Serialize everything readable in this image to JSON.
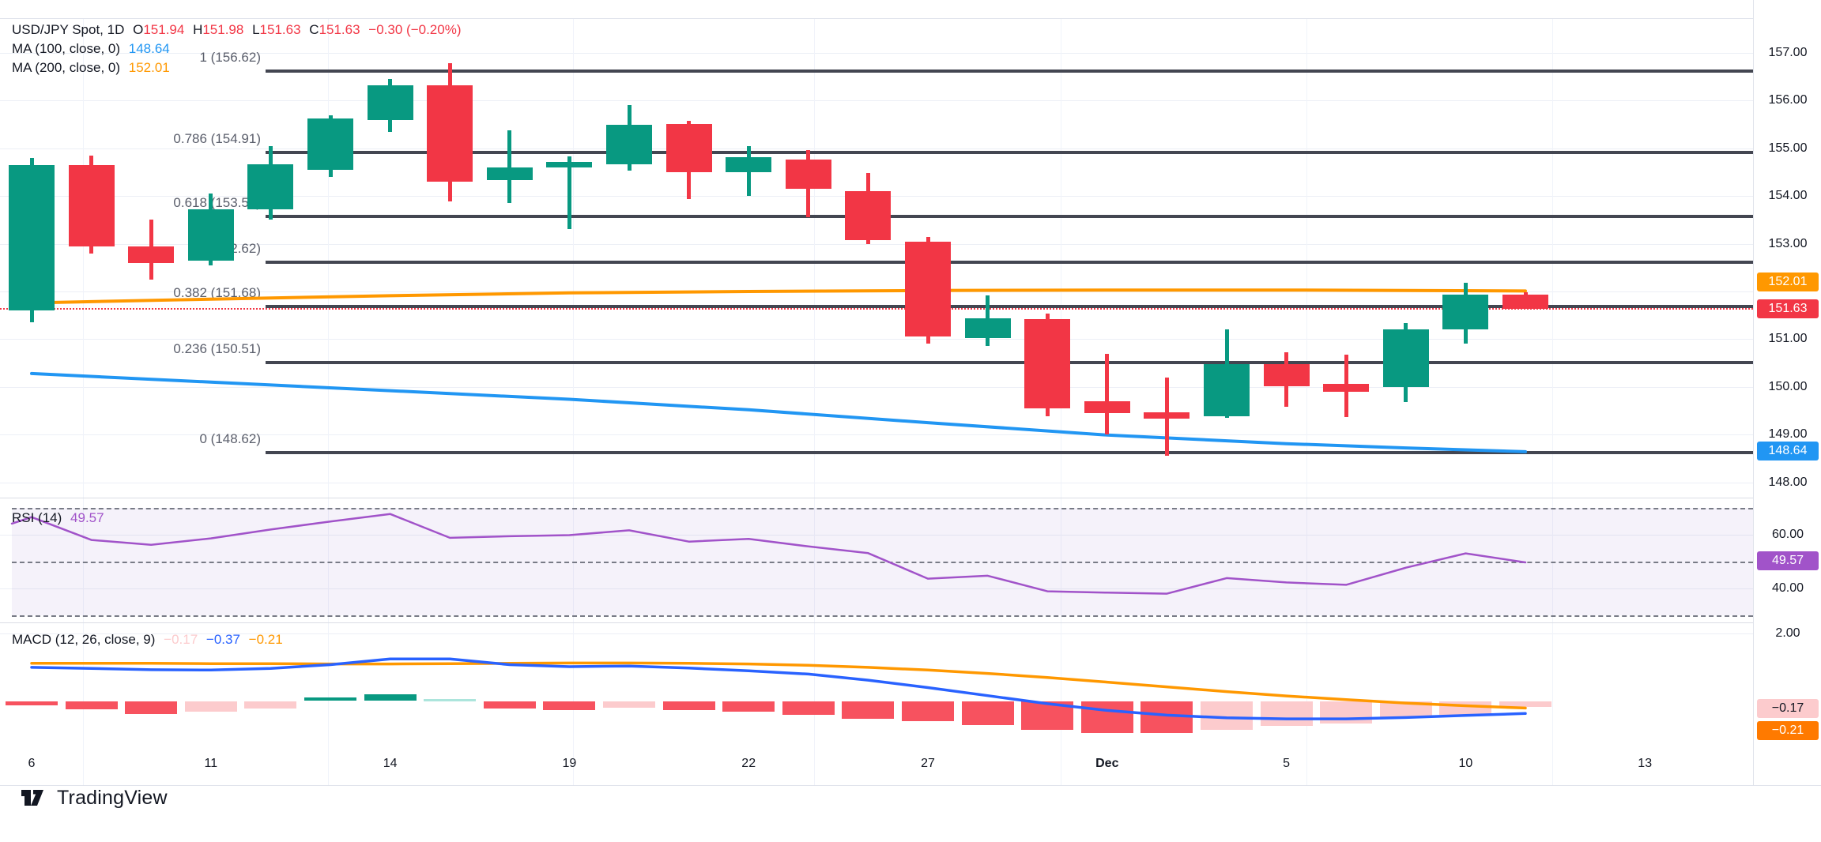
{
  "header": {
    "symbol": "USD/JPY Spot, 1D",
    "ohlc": {
      "o_label": "O",
      "o": "151.94",
      "h_label": "H",
      "h": "151.98",
      "l_label": "L",
      "l": "151.63",
      "c_label": "C",
      "c": "151.63",
      "change": "−0.30 (−0.20%)"
    },
    "ma100_label": "MA (100, close, 0)",
    "ma100_value": "148.64",
    "ma200_label": "MA (200, close, 0)",
    "ma200_value": "152.01"
  },
  "rsi_panel": {
    "label": "RSI (14)",
    "value": "49.57",
    "tick_upper": "60.00",
    "tick_lower": "40.00",
    "badge": "49.57"
  },
  "macd_panel": {
    "label": "MACD (12, 26, close, 9)",
    "hist_value": "−0.17",
    "macd_value": "−0.37",
    "signal_value": "−0.21",
    "tick": "2.00",
    "badge_hist": "−0.17",
    "badge_signal": "−0.21"
  },
  "price_axis": {
    "ticks": [
      "157.00",
      "156.00",
      "155.00",
      "154.00",
      "153.00",
      "151.00",
      "150.00",
      "149.00",
      "148.00"
    ],
    "badges": [
      {
        "text": "152.01",
        "bg": "#FF9800",
        "fg": "#FFFFFF"
      },
      {
        "text": "151.63",
        "bg": "#F23645",
        "fg": "#FFFFFF"
      },
      {
        "text": "148.64",
        "bg": "#2196F3",
        "fg": "#FFFFFF"
      },
      {
        "text": "49.57",
        "bg": "#A153C9",
        "fg": "#FFFFFF"
      },
      {
        "text": "−0.17",
        "bg": "#FCCBCD",
        "fg": "#131722"
      },
      {
        "text": "−0.21",
        "bg": "#FF7A00",
        "fg": "#FFFFFF"
      }
    ]
  },
  "time_axis": {
    "ticks": [
      {
        "label": "6",
        "bar": 0,
        "bold": false
      },
      {
        "label": "11",
        "bar": 3,
        "bold": false
      },
      {
        "label": "14",
        "bar": 6,
        "bold": false
      },
      {
        "label": "19",
        "bar": 9,
        "bold": false
      },
      {
        "label": "22",
        "bar": 12,
        "bold": false
      },
      {
        "label": "27",
        "bar": 15,
        "bold": false
      },
      {
        "label": "Dec",
        "bar": 18,
        "bold": true
      },
      {
        "label": "5",
        "bar": 21,
        "bold": false
      },
      {
        "label": "10",
        "bar": 24,
        "bold": false
      },
      {
        "label": "13",
        "bar": 27,
        "bold": false
      }
    ]
  },
  "fib": {
    "levels": [
      {
        "label": "1 (156.62)",
        "price": 156.62
      },
      {
        "label": "0.786 (154.91)",
        "price": 154.91
      },
      {
        "label": "0.618 (153.57)",
        "price": 153.57
      },
      {
        "label": "0.5 (152.62)",
        "price": 152.62
      },
      {
        "label": "0.382 (151.68)",
        "price": 151.68
      },
      {
        "label": "0.236 (150.51)",
        "price": 150.51
      },
      {
        "label": "0 (148.62)",
        "price": 148.62
      }
    ]
  },
  "footer": {
    "brand": "TradingView"
  },
  "colors": {
    "up": "#089981",
    "down": "#F23645",
    "ma100": "#2196F3",
    "ma200": "#FF9800",
    "rsi": "#A153C9",
    "macd_line": "#2962FF",
    "signal_line": "#FF9800",
    "hist_neg": "#F7525F",
    "hist_neg_light": "#FCCBCD",
    "hist_pos": "#089981",
    "hist_pos_light": "#ACE5DC",
    "fib_line": "#434651",
    "close_line": "#F23645"
  },
  "chart_data": {
    "type": "candlestick-with-indicators",
    "title": "USD/JPY Spot, 1D",
    "interval": "1D",
    "price_axis_range": [
      147.65,
      157.75
    ],
    "rsi_axis_visible": [
      30,
      70
    ],
    "macd_axis_tick": 2.0,
    "dates": [
      "Nov 6",
      "Nov 7",
      "Nov 8",
      "Nov 11",
      "Nov 12",
      "Nov 13",
      "Nov 14",
      "Nov 15",
      "Nov 18",
      "Nov 19",
      "Nov 20",
      "Nov 21",
      "Nov 22",
      "Nov 25",
      "Nov 26",
      "Nov 27",
      "Nov 28",
      "Nov 29",
      "Dec 2",
      "Dec 3",
      "Dec 4",
      "Dec 5",
      "Dec 6",
      "Dec 9",
      "Dec 10",
      "Dec 11"
    ],
    "candles_ohlc": [
      [
        151.6,
        154.8,
        151.35,
        154.65
      ],
      [
        154.65,
        154.85,
        152.8,
        152.95
      ],
      [
        152.95,
        153.5,
        152.25,
        152.6
      ],
      [
        152.65,
        154.05,
        152.55,
        153.72
      ],
      [
        153.72,
        155.05,
        153.5,
        154.67
      ],
      [
        154.55,
        155.7,
        154.4,
        155.62
      ],
      [
        155.59,
        156.45,
        155.35,
        156.32
      ],
      [
        156.32,
        156.78,
        153.88,
        154.3
      ],
      [
        154.33,
        155.37,
        153.85,
        154.6
      ],
      [
        154.6,
        154.83,
        153.3,
        154.71
      ],
      [
        154.66,
        155.9,
        154.54,
        155.49
      ],
      [
        155.51,
        155.57,
        153.93,
        154.5
      ],
      [
        154.5,
        155.04,
        154.0,
        154.82
      ],
      [
        154.77,
        154.96,
        153.56,
        154.16
      ],
      [
        154.1,
        154.49,
        152.99,
        153.08
      ],
      [
        153.05,
        153.15,
        150.9,
        151.06
      ],
      [
        151.02,
        151.92,
        150.85,
        151.43
      ],
      [
        151.42,
        151.53,
        149.38,
        149.55
      ],
      [
        149.7,
        150.69,
        149.0,
        149.45
      ],
      [
        149.46,
        150.19,
        148.55,
        149.33
      ],
      [
        149.38,
        151.2,
        149.35,
        150.47
      ],
      [
        150.47,
        150.72,
        149.58,
        150.02
      ],
      [
        150.07,
        150.68,
        149.36,
        149.9
      ],
      [
        149.99,
        151.34,
        149.69,
        151.21
      ],
      [
        151.2,
        152.18,
        150.9,
        151.93
      ],
      [
        151.94,
        151.98,
        151.63,
        151.63
      ]
    ],
    "ma100_points": [
      [
        0,
        150.28
      ],
      [
        3,
        150.1
      ],
      [
        6,
        149.92
      ],
      [
        9,
        149.74
      ],
      [
        12,
        149.52
      ],
      [
        15,
        149.25
      ],
      [
        18,
        148.99
      ],
      [
        21,
        148.81
      ],
      [
        23,
        148.72
      ],
      [
        25,
        148.64
      ]
    ],
    "ma200_points": [
      [
        0,
        151.76
      ],
      [
        3,
        151.84
      ],
      [
        6,
        151.91
      ],
      [
        9,
        151.97
      ],
      [
        12,
        152.0
      ],
      [
        15,
        152.02
      ],
      [
        18,
        152.03
      ],
      [
        21,
        152.03
      ],
      [
        23,
        152.02
      ],
      [
        25,
        152.01
      ]
    ],
    "fib_prices": [
      156.62,
      154.91,
      153.57,
      152.62,
      151.68,
      150.51,
      148.62
    ],
    "last_close": 151.63,
    "rsi": [
      66.4,
      57.9,
      56.1,
      58.5,
      61.8,
      64.8,
      67.6,
      58.7,
      59.3,
      59.7,
      61.5,
      57.3,
      58.3,
      55.5,
      53.0,
      43.5,
      44.6,
      38.8,
      38.3,
      37.9,
      43.7,
      42.1,
      41.2,
      47.6,
      52.9,
      49.57
    ],
    "rsi_levels": {
      "overbought": 70,
      "middle": 50,
      "oversold": 30
    },
    "macd_line": [
      1.0,
      0.97,
      0.93,
      0.92,
      0.97,
      1.08,
      1.25,
      1.25,
      1.08,
      1.02,
      1.04,
      0.98,
      0.9,
      0.8,
      0.62,
      0.4,
      0.16,
      -0.08,
      -0.28,
      -0.42,
      -0.5,
      -0.53,
      -0.53,
      -0.49,
      -0.43,
      -0.37
    ],
    "signal_line": [
      1.12,
      1.12,
      1.12,
      1.11,
      1.11,
      1.1,
      1.1,
      1.11,
      1.12,
      1.13,
      1.13,
      1.12,
      1.1,
      1.06,
      1.0,
      0.92,
      0.82,
      0.7,
      0.56,
      0.42,
      0.28,
      0.15,
      0.04,
      -0.06,
      -0.14,
      -0.21
    ],
    "histogram": [
      -0.13,
      -0.25,
      -0.39,
      -0.32,
      -0.22,
      0.1,
      0.2,
      0.07,
      -0.22,
      -0.28,
      -0.19,
      -0.27,
      -0.32,
      -0.4,
      -0.52,
      -0.61,
      -0.72,
      -0.86,
      -0.94,
      -0.96,
      -0.86,
      -0.75,
      -0.68,
      -0.51,
      -0.4,
      -0.17
    ]
  }
}
